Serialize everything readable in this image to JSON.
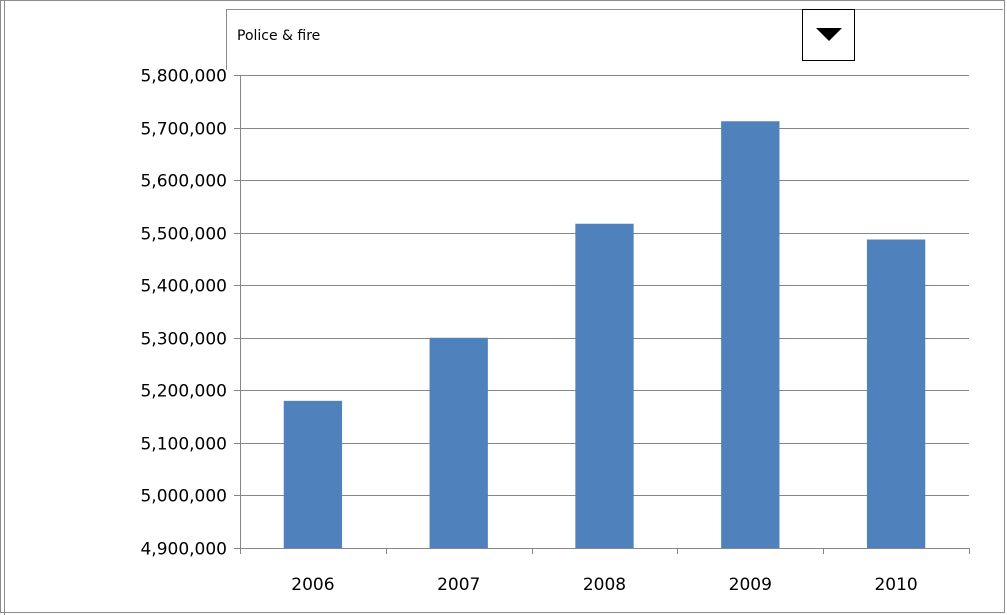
{
  "selector": {
    "label": "Police & fire",
    "dropdown_icon": "triangle-down-icon"
  },
  "chart_data": {
    "type": "bar",
    "categories": [
      "2006",
      "2007",
      "2008",
      "2009",
      "2010"
    ],
    "values": [
      5180000,
      5300000,
      5517000,
      5712000,
      5487000
    ],
    "ylim": [
      4900000,
      5800000
    ],
    "ytick_step": 100000,
    "yticks": [
      "4,900,000",
      "5,000,000",
      "5,100,000",
      "5,200,000",
      "5,300,000",
      "5,400,000",
      "5,500,000",
      "5,600,000",
      "5,700,000",
      "5,800,000"
    ],
    "grid": true,
    "legend": "none",
    "bar_color": "#4f81bd",
    "title": "",
    "xlabel": "",
    "ylabel": ""
  }
}
